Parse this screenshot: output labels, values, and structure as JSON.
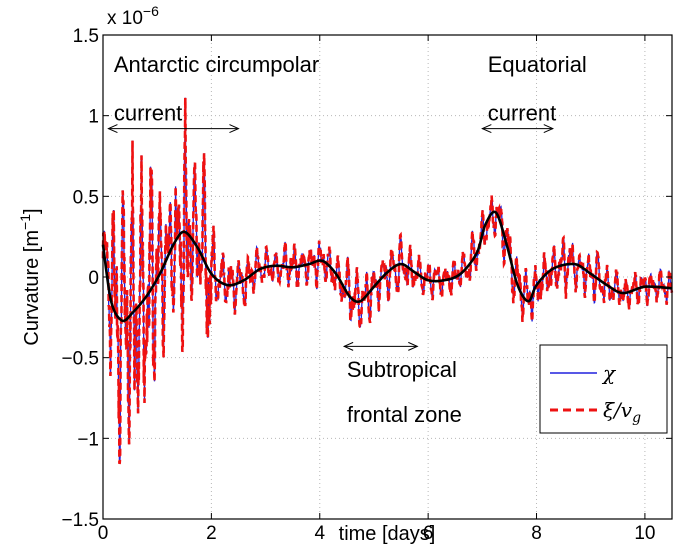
{
  "chart_data": {
    "type": "line",
    "title": "",
    "xlabel": "time [days]",
    "ylabel_text": "Curvature [m",
    "ylabel_sup": "−1",
    "ylabel_close": "]",
    "y_scale_prefix": "x 10",
    "y_scale_exp": "−6",
    "xlim": [
      0,
      10.5
    ],
    "ylim": [
      -1.5,
      1.5
    ],
    "y_multiplier": 1e-06,
    "x_ticks": [
      0,
      2,
      4,
      6,
      8,
      10
    ],
    "x_tick_labels": [
      "0",
      "2",
      "4",
      "6",
      "8",
      "10"
    ],
    "y_ticks": [
      -1.5,
      -1,
      -0.5,
      0,
      0.5,
      1,
      1.5
    ],
    "y_tick_labels": [
      "−1.5",
      "−1",
      "−0.5",
      "0",
      "0.5",
      "1",
      "1.5"
    ],
    "grid": true,
    "legend_position": "bottom-right",
    "colors": {
      "chi": "#2020dd",
      "xi": "#ee1111",
      "smooth": "#000000"
    },
    "series": [
      {
        "key": "chi",
        "name": "χ",
        "style": "solid"
      },
      {
        "key": "xi",
        "name": "ξ/v",
        "name_sub": "g",
        "style": "dashed"
      },
      {
        "key": "smooth",
        "style": "solid-thick",
        "x": [
          0,
          0.15,
          0.35,
          0.55,
          0.8,
          1.05,
          1.3,
          1.5,
          1.75,
          2.0,
          2.3,
          2.6,
          2.9,
          3.2,
          3.5,
          3.8,
          4.05,
          4.3,
          4.55,
          4.75,
          5.0,
          5.25,
          5.5,
          5.75,
          6.0,
          6.3,
          6.6,
          6.9,
          7.05,
          7.25,
          7.45,
          7.65,
          7.85,
          8.0,
          8.3,
          8.7,
          9.0,
          9.3,
          9.6,
          10.0,
          10.5
        ],
        "values": [
          0.2,
          -0.15,
          -0.27,
          -0.22,
          -0.12,
          0.02,
          0.2,
          0.28,
          0.18,
          0.02,
          -0.05,
          -0.02,
          0.05,
          0.07,
          0.06,
          0.08,
          0.1,
          0.02,
          -0.12,
          -0.15,
          -0.06,
          0.03,
          0.08,
          0.03,
          -0.02,
          -0.02,
          0.02,
          0.15,
          0.32,
          0.4,
          0.2,
          -0.05,
          -0.15,
          -0.05,
          0.05,
          0.08,
          0.02,
          -0.05,
          -0.1,
          -0.06,
          -0.07
        ]
      }
    ],
    "noisy_envelope": {
      "x": [
        0,
        0.15,
        0.3,
        0.45,
        0.6,
        0.75,
        0.9,
        1.05,
        1.2,
        1.35,
        1.5,
        1.65,
        1.8,
        1.9,
        2.05,
        2.2,
        2.4,
        2.6,
        2.8,
        3.0,
        3.2,
        3.4,
        3.6,
        3.8,
        4.0,
        4.2,
        4.4,
        4.6,
        4.8,
        5.0,
        5.2,
        5.4,
        5.6,
        5.8,
        6.0,
        6.2,
        6.4,
        6.6,
        6.8,
        7.0,
        7.2,
        7.4,
        7.6,
        7.8,
        8.0,
        8.2,
        8.4,
        8.6,
        8.8,
        9.0,
        9.2,
        9.4,
        9.6,
        9.8,
        10.0,
        10.2,
        10.5
      ],
      "amplitude": [
        0.2,
        0.6,
        1.1,
        1.3,
        1.0,
        0.9,
        0.85,
        0.6,
        0.5,
        0.45,
        0.9,
        0.5,
        0.35,
        0.95,
        0.3,
        0.22,
        0.18,
        0.16,
        0.15,
        0.15,
        0.14,
        0.15,
        0.17,
        0.18,
        0.15,
        0.15,
        0.18,
        0.22,
        0.16,
        0.2,
        0.18,
        0.2,
        0.15,
        0.13,
        0.12,
        0.12,
        0.12,
        0.12,
        0.15,
        0.18,
        0.15,
        0.2,
        0.22,
        0.2,
        0.18,
        0.16,
        0.17,
        0.2,
        0.15,
        0.17,
        0.17,
        0.13,
        0.12,
        0.12,
        0.12,
        0.13,
        0.12
      ]
    },
    "annotations": [
      {
        "id": "acc",
        "lines": [
          "Antarctic circumpolar",
          "current"
        ],
        "arrow_x": [
          0.1,
          2.5
        ],
        "arrow_y": 0.92,
        "text_x": 0.2,
        "text_y": [
          1.27,
          0.97
        ]
      },
      {
        "id": "eq",
        "lines": [
          "Equatorial",
          "current"
        ],
        "arrow_x": [
          7.0,
          8.3
        ],
        "arrow_y": 0.92,
        "text_x": 7.1,
        "text_y": [
          1.27,
          0.97
        ]
      },
      {
        "id": "stfz",
        "lines": [
          "Subtropical",
          "frontal zone"
        ],
        "arrow_x": [
          4.45,
          5.8
        ],
        "arrow_y": -0.43,
        "text_x": 4.5,
        "text_y": [
          -0.62,
          -0.9
        ]
      }
    ]
  }
}
